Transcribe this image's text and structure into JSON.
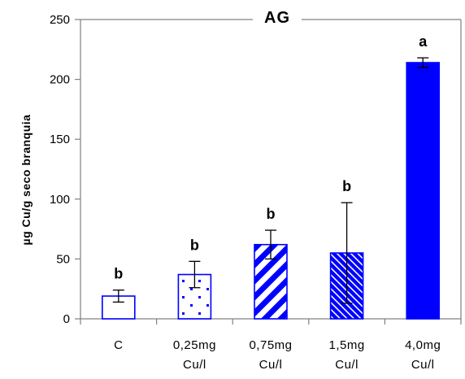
{
  "chart_data": {
    "type": "bar",
    "title": "AG",
    "xlabel": "",
    "ylabel": "µg Cu/g seco branquia",
    "ylim": [
      0,
      250
    ],
    "yticks": [
      0,
      50,
      100,
      150,
      200,
      250
    ],
    "grid": false,
    "categories": [
      [
        "C"
      ],
      [
        "0,25mg",
        "Cu/l"
      ],
      [
        "0,75mg",
        "Cu/l"
      ],
      [
        "1,5mg",
        "Cu/l"
      ],
      [
        "4,0mg",
        "Cu/l"
      ]
    ],
    "values": [
      19,
      37,
      62,
      55,
      214
    ],
    "error": [
      5,
      11,
      12,
      42,
      4
    ],
    "significance": [
      "b",
      "b",
      "b",
      "b",
      "a"
    ],
    "colors": {
      "main": "#0000ff",
      "axis": "#808080"
    },
    "fills": [
      "outline",
      "dots",
      "diagonal-wide",
      "diagonal-dense",
      "solid"
    ]
  }
}
